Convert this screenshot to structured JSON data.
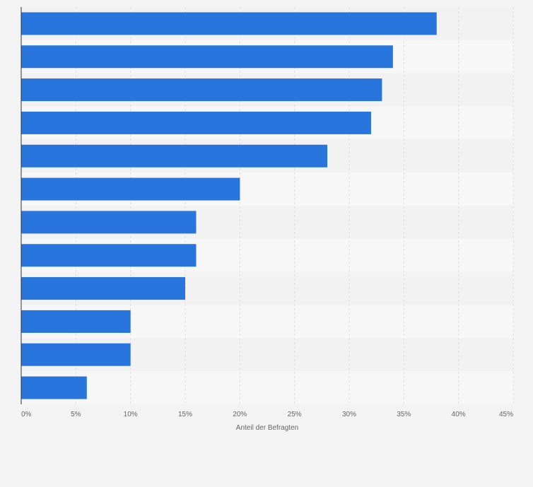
{
  "chart_data": {
    "type": "bar",
    "orientation": "horizontal",
    "title": "",
    "xlabel": "Anteil der Befragten",
    "ylabel": "",
    "xlim": [
      0,
      45
    ],
    "grid": true,
    "tick_labels": [
      "0%",
      "5%",
      "10%",
      "15%",
      "20%",
      "25%",
      "30%",
      "35%",
      "40%",
      "45%"
    ],
    "categories": [
      "",
      "",
      "",
      "",
      "",
      "",
      "",
      "",
      "",
      "",
      "",
      ""
    ],
    "values": [
      38,
      34,
      33,
      32,
      28,
      20,
      16,
      16,
      15,
      10,
      10,
      6
    ],
    "colors": {
      "bar": "#2876dd",
      "band_dark": "#f2f2f2",
      "band_light": "#f7f7f7",
      "grid": "#dcdcdc",
      "axis": "#333333",
      "text": "#666666"
    }
  }
}
